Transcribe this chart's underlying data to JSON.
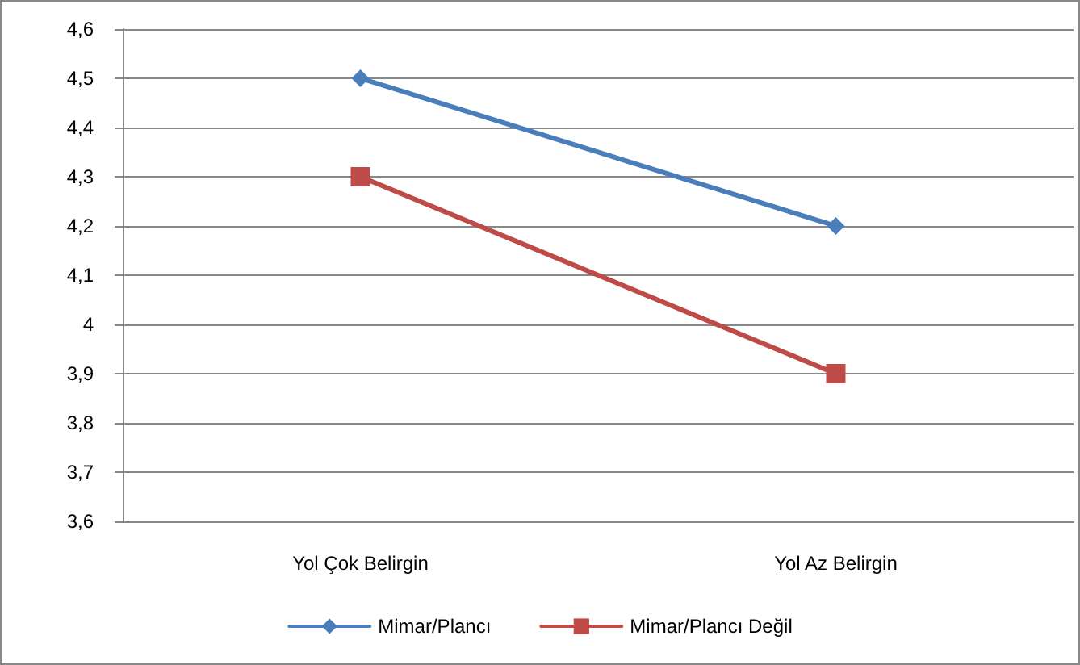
{
  "chart_data": {
    "type": "line",
    "categories": [
      "Yol Çok Belirgin",
      "Yol Az Belirgin"
    ],
    "series": [
      {
        "name": "Mimar/Plancı",
        "color": "#4a7ebb",
        "marker": "diamond",
        "values": [
          4.5,
          4.2
        ]
      },
      {
        "name": "Mimar/Plancı Değil",
        "color": "#be4b48",
        "marker": "square",
        "values": [
          4.3,
          3.9
        ]
      }
    ],
    "ylim": [
      3.6,
      4.6
    ],
    "yticks": [
      {
        "value": 3.6,
        "label": "3,6"
      },
      {
        "value": 3.7,
        "label": "3,7"
      },
      {
        "value": 3.8,
        "label": "3,8"
      },
      {
        "value": 3.9,
        "label": "3,9"
      },
      {
        "value": 4,
        "label": "4"
      },
      {
        "value": 4.1,
        "label": "4,1"
      },
      {
        "value": 4.2,
        "label": "4,2"
      },
      {
        "value": 4.3,
        "label": "4,3"
      },
      {
        "value": 4.4,
        "label": "4,4"
      },
      {
        "value": 4.5,
        "label": "4,5"
      },
      {
        "value": 4.6,
        "label": "4,6"
      }
    ],
    "grid": "y",
    "legend": "bottom"
  }
}
